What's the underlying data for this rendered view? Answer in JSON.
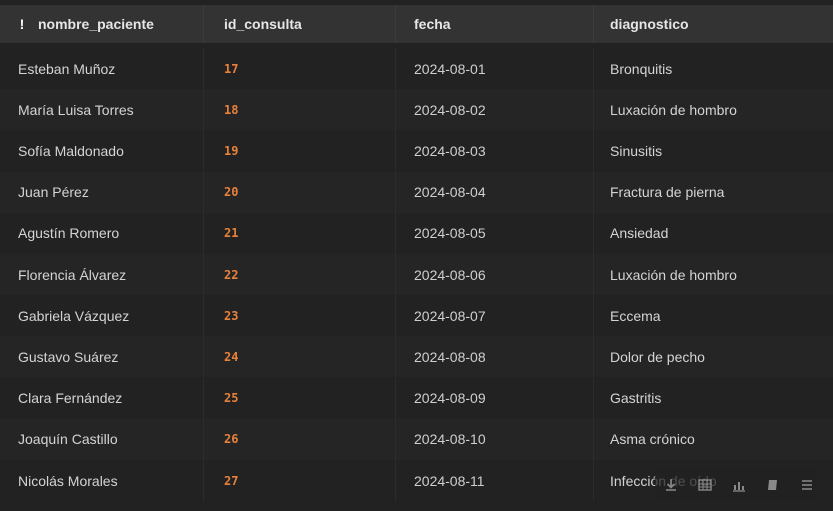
{
  "table": {
    "columns": [
      "nombre_paciente",
      "id_consulta",
      "fecha",
      "diagnostico"
    ],
    "rows": [
      {
        "nombre_paciente": "Esteban Muñoz",
        "id_consulta": "17",
        "fecha": "2024-08-01",
        "diagnostico": "Bronquitis"
      },
      {
        "nombre_paciente": "María Luisa Torres",
        "id_consulta": "18",
        "fecha": "2024-08-02",
        "diagnostico": "Luxación de hombro"
      },
      {
        "nombre_paciente": "Sofía Maldonado",
        "id_consulta": "19",
        "fecha": "2024-08-03",
        "diagnostico": "Sinusitis"
      },
      {
        "nombre_paciente": "Juan Pérez",
        "id_consulta": "20",
        "fecha": "2024-08-04",
        "diagnostico": "Fractura de pierna"
      },
      {
        "nombre_paciente": "Agustín Romero",
        "id_consulta": "21",
        "fecha": "2024-08-05",
        "diagnostico": "Ansiedad"
      },
      {
        "nombre_paciente": "Florencia Álvarez",
        "id_consulta": "22",
        "fecha": "2024-08-06",
        "diagnostico": "Luxación de hombro"
      },
      {
        "nombre_paciente": "Gabriela Vázquez",
        "id_consulta": "23",
        "fecha": "2024-08-07",
        "diagnostico": "Eccema"
      },
      {
        "nombre_paciente": "Gustavo Suárez",
        "id_consulta": "24",
        "fecha": "2024-08-08",
        "diagnostico": "Dolor de pecho"
      },
      {
        "nombre_paciente": "Clara Fernández",
        "id_consulta": "25",
        "fecha": "2024-08-09",
        "diagnostico": "Gastritis"
      },
      {
        "nombre_paciente": "Joaquín Castillo",
        "id_consulta": "26",
        "fecha": "2024-08-10",
        "diagnostico": "Asma crónico"
      },
      {
        "nombre_paciente": "Nicolás Morales",
        "id_consulta": "27",
        "fecha": "2024-08-11",
        "diagnostico": "Infección de oído"
      }
    ]
  },
  "toolbar": {
    "icons": [
      "download-icon",
      "table-view-icon",
      "chart-view-icon",
      "copy-icon",
      "menu-icon"
    ]
  },
  "colors": {
    "id_text": "#e8813a",
    "header_bg": "#333333",
    "row_bg": "#222222"
  }
}
